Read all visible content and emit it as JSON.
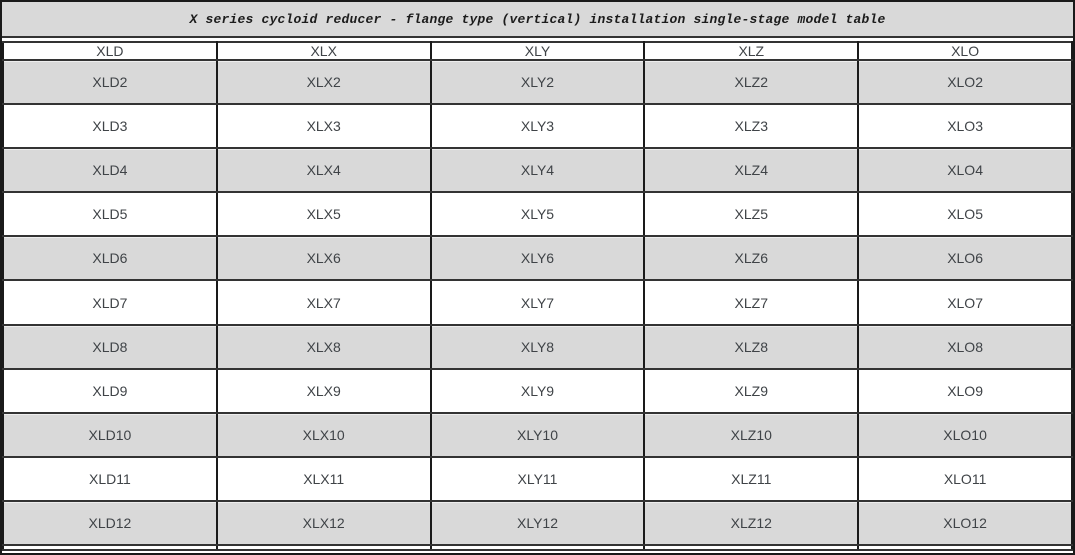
{
  "title": "X series cycloid reducer - flange type (vertical) installation single-stage model table",
  "colors": {
    "title_bg": "#d9d9d9",
    "title_text": "#1c1c1c",
    "row_alt": "#d9d9d9",
    "row_base": "#ffffff",
    "border_outer": "#1a1a1a",
    "border_inner": "#333333",
    "cell_text": "#3f4347"
  },
  "table": {
    "headers": [
      "XLD",
      "XLX",
      "XLY",
      "XLZ",
      "XLO"
    ],
    "rows": [
      [
        "XLD2",
        "XLX2",
        "XLY2",
        "XLZ2",
        "XLO2"
      ],
      [
        "XLD3",
        "XLX3",
        "XLY3",
        "XLZ3",
        "XLO3"
      ],
      [
        "XLD4",
        "XLX4",
        "XLY4",
        "XLZ4",
        "XLO4"
      ],
      [
        "XLD5",
        "XLX5",
        "XLY5",
        "XLZ5",
        "XLO5"
      ],
      [
        "XLD6",
        "XLX6",
        "XLY6",
        "XLZ6",
        "XLO6"
      ],
      [
        "XLD7",
        "XLX7",
        "XLY7",
        "XLZ7",
        "XLO7"
      ],
      [
        "XLD8",
        "XLX8",
        "XLY8",
        "XLZ8",
        "XLO8"
      ],
      [
        "XLD9",
        "XLX9",
        "XLY9",
        "XLZ9",
        "XLO9"
      ],
      [
        "XLD10",
        "XLX10",
        "XLY10",
        "XLZ10",
        "XLO10"
      ],
      [
        "XLD11",
        "XLX11",
        "XLY11",
        "XLZ11",
        "XLO11"
      ],
      [
        "XLD12",
        "XLX12",
        "XLY12",
        "XLZ12",
        "XLO12"
      ],
      [
        "",
        "",
        "",
        "",
        ""
      ]
    ]
  }
}
